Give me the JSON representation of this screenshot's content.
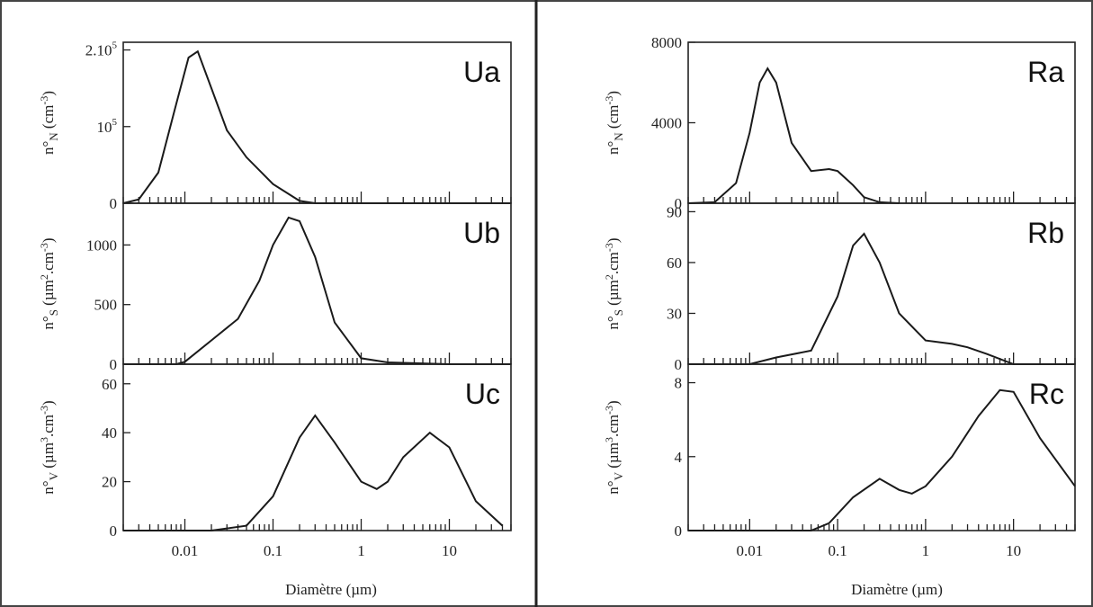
{
  "figure": {
    "xlabel_left": "Diamètre (µm)",
    "xlabel_right": "Diamètre (µm)",
    "x_ticks": [
      "0.01",
      "0.1",
      "1",
      "10"
    ]
  },
  "chart_data": [
    {
      "type": "line",
      "label": "Ua",
      "x_scale": "log",
      "xlim": [
        0.002,
        50
      ],
      "ylim": [
        0,
        210000
      ],
      "ylabel": "n°N (cm-3)",
      "y_ticks": [
        {
          "value": 0,
          "label": "0"
        },
        {
          "value": 100000,
          "label": "10^5"
        },
        {
          "value": 200000,
          "label": "2.10^5"
        }
      ],
      "series": [
        {
          "x": [
            0.002,
            0.003,
            0.005,
            0.008,
            0.011,
            0.014,
            0.02,
            0.03,
            0.05,
            0.1,
            0.2,
            0.3,
            1,
            10,
            50
          ],
          "y": [
            0,
            5000,
            40000,
            130000,
            190000,
            198000,
            150000,
            95000,
            60000,
            25000,
            3000,
            0,
            0,
            0,
            0
          ]
        }
      ]
    },
    {
      "type": "line",
      "label": "Ub",
      "x_scale": "log",
      "xlim": [
        0.002,
        50
      ],
      "ylim": [
        0,
        1350
      ],
      "ylabel": "n°S (µm2.cm-3)",
      "y_ticks": [
        {
          "value": 0,
          "label": "0"
        },
        {
          "value": 500,
          "label": "500"
        },
        {
          "value": 1000,
          "label": "1000"
        }
      ],
      "series": [
        {
          "x": [
            0.002,
            0.008,
            0.01,
            0.02,
            0.04,
            0.07,
            0.1,
            0.15,
            0.2,
            0.3,
            0.5,
            1,
            2,
            10,
            50
          ],
          "y": [
            0,
            0,
            20,
            200,
            380,
            700,
            1000,
            1230,
            1200,
            900,
            350,
            50,
            15,
            0,
            0
          ]
        }
      ]
    },
    {
      "type": "line",
      "label": "Uc",
      "x_scale": "log",
      "xlim": [
        0.002,
        50
      ],
      "ylim": [
        0,
        68
      ],
      "ylabel": "n°V (µm3.cm-3)",
      "y_ticks": [
        {
          "value": 0,
          "label": "0"
        },
        {
          "value": 20,
          "label": "20"
        },
        {
          "value": 40,
          "label": "40"
        },
        {
          "value": 60,
          "label": "60"
        }
      ],
      "series": [
        {
          "x": [
            0.002,
            0.02,
            0.05,
            0.1,
            0.2,
            0.3,
            0.5,
            1,
            1.5,
            2,
            3,
            6,
            10,
            20,
            40
          ],
          "y": [
            0,
            0,
            2,
            14,
            38,
            47,
            36,
            20,
            17,
            20,
            30,
            40,
            34,
            12,
            2
          ]
        }
      ]
    },
    {
      "type": "line",
      "label": "Ra",
      "x_scale": "log",
      "xlim": [
        0.002,
        50
      ],
      "ylim": [
        0,
        8000
      ],
      "ylabel": "n°N (cm-3)",
      "y_ticks": [
        {
          "value": 0,
          "label": "0"
        },
        {
          "value": 4000,
          "label": "4000"
        },
        {
          "value": 8000,
          "label": "8000"
        }
      ],
      "series": [
        {
          "x": [
            0.002,
            0.004,
            0.007,
            0.01,
            0.013,
            0.016,
            0.02,
            0.03,
            0.05,
            0.08,
            0.1,
            0.15,
            0.2,
            0.3,
            0.5
          ],
          "y": [
            0,
            50,
            1000,
            3500,
            6000,
            6700,
            6000,
            3000,
            1600,
            1700,
            1600,
            900,
            300,
            50,
            0
          ]
        }
      ]
    },
    {
      "type": "line",
      "label": "Rb",
      "x_scale": "log",
      "xlim": [
        0.002,
        50
      ],
      "ylim": [
        0,
        95
      ],
      "ylabel": "n°S (µm2.cm-3)",
      "y_ticks": [
        {
          "value": 0,
          "label": "0"
        },
        {
          "value": 30,
          "label": "30"
        },
        {
          "value": 60,
          "label": "60"
        },
        {
          "value": 90,
          "label": "90"
        }
      ],
      "series": [
        {
          "x": [
            0.002,
            0.01,
            0.02,
            0.05,
            0.1,
            0.15,
            0.2,
            0.3,
            0.5,
            1,
            2,
            3,
            5,
            10,
            50
          ],
          "y": [
            0,
            0,
            4,
            8,
            40,
            70,
            77,
            60,
            30,
            14,
            12,
            10,
            6,
            0,
            0
          ]
        }
      ]
    },
    {
      "type": "line",
      "label": "Rc",
      "x_scale": "log",
      "xlim": [
        0.002,
        50
      ],
      "ylim": [
        0,
        9
      ],
      "ylabel": "n°V (µm3.cm-3)",
      "y_ticks": [
        {
          "value": 0,
          "label": "0"
        },
        {
          "value": 4,
          "label": "4"
        },
        {
          "value": 8,
          "label": "8"
        }
      ],
      "series": [
        {
          "x": [
            0.002,
            0.05,
            0.08,
            0.15,
            0.3,
            0.5,
            0.7,
            1,
            2,
            4,
            7,
            10,
            20,
            50
          ],
          "y": [
            0,
            0,
            0.4,
            1.8,
            2.8,
            2.2,
            2.0,
            2.4,
            4.0,
            6.2,
            7.6,
            7.5,
            5.0,
            2.4
          ]
        }
      ]
    }
  ]
}
